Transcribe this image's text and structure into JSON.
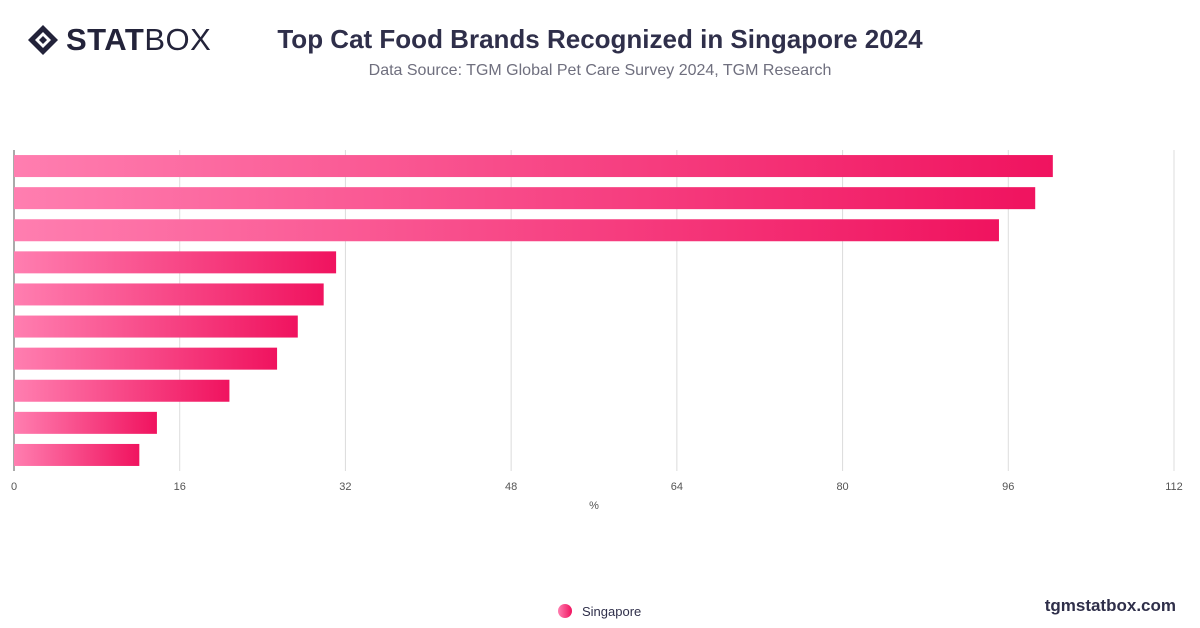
{
  "header": {
    "logo_text_bold": "STAT",
    "logo_text_light": "BOX",
    "title": "Top Cat Food Brands Recognized in Singapore 2024",
    "subtitle": "Data Source: TGM Global Pet Care Survey 2024, TGM Research"
  },
  "footer": {
    "site": "tgmstatbox.com"
  },
  "colors": {
    "bar_start": "#ff7eb0",
    "bar_end": "#f0135f",
    "grid": "#dcdcdc",
    "text": "#2f2f4a"
  },
  "chart_data": {
    "type": "bar",
    "orientation": "horizontal",
    "title": "Top Cat Food Brands Recognized in Singapore 2024",
    "subtitle": "Data Source: TGM Global Pet Care Survey 2024, TGM Research",
    "xlabel": "%",
    "ylabel": "",
    "xlim": [
      0,
      112
    ],
    "xticks": [
      "0",
      "16",
      "32",
      "48",
      "64",
      "80",
      "96",
      "112"
    ],
    "series": [
      {
        "name": "Singapore",
        "values": [
          100.3,
          98.6,
          95.1,
          31.1,
          29.9,
          27.4,
          25.4,
          20.8,
          13.8,
          12.1
        ]
      }
    ],
    "grid": true,
    "legend": "bottom-center"
  }
}
